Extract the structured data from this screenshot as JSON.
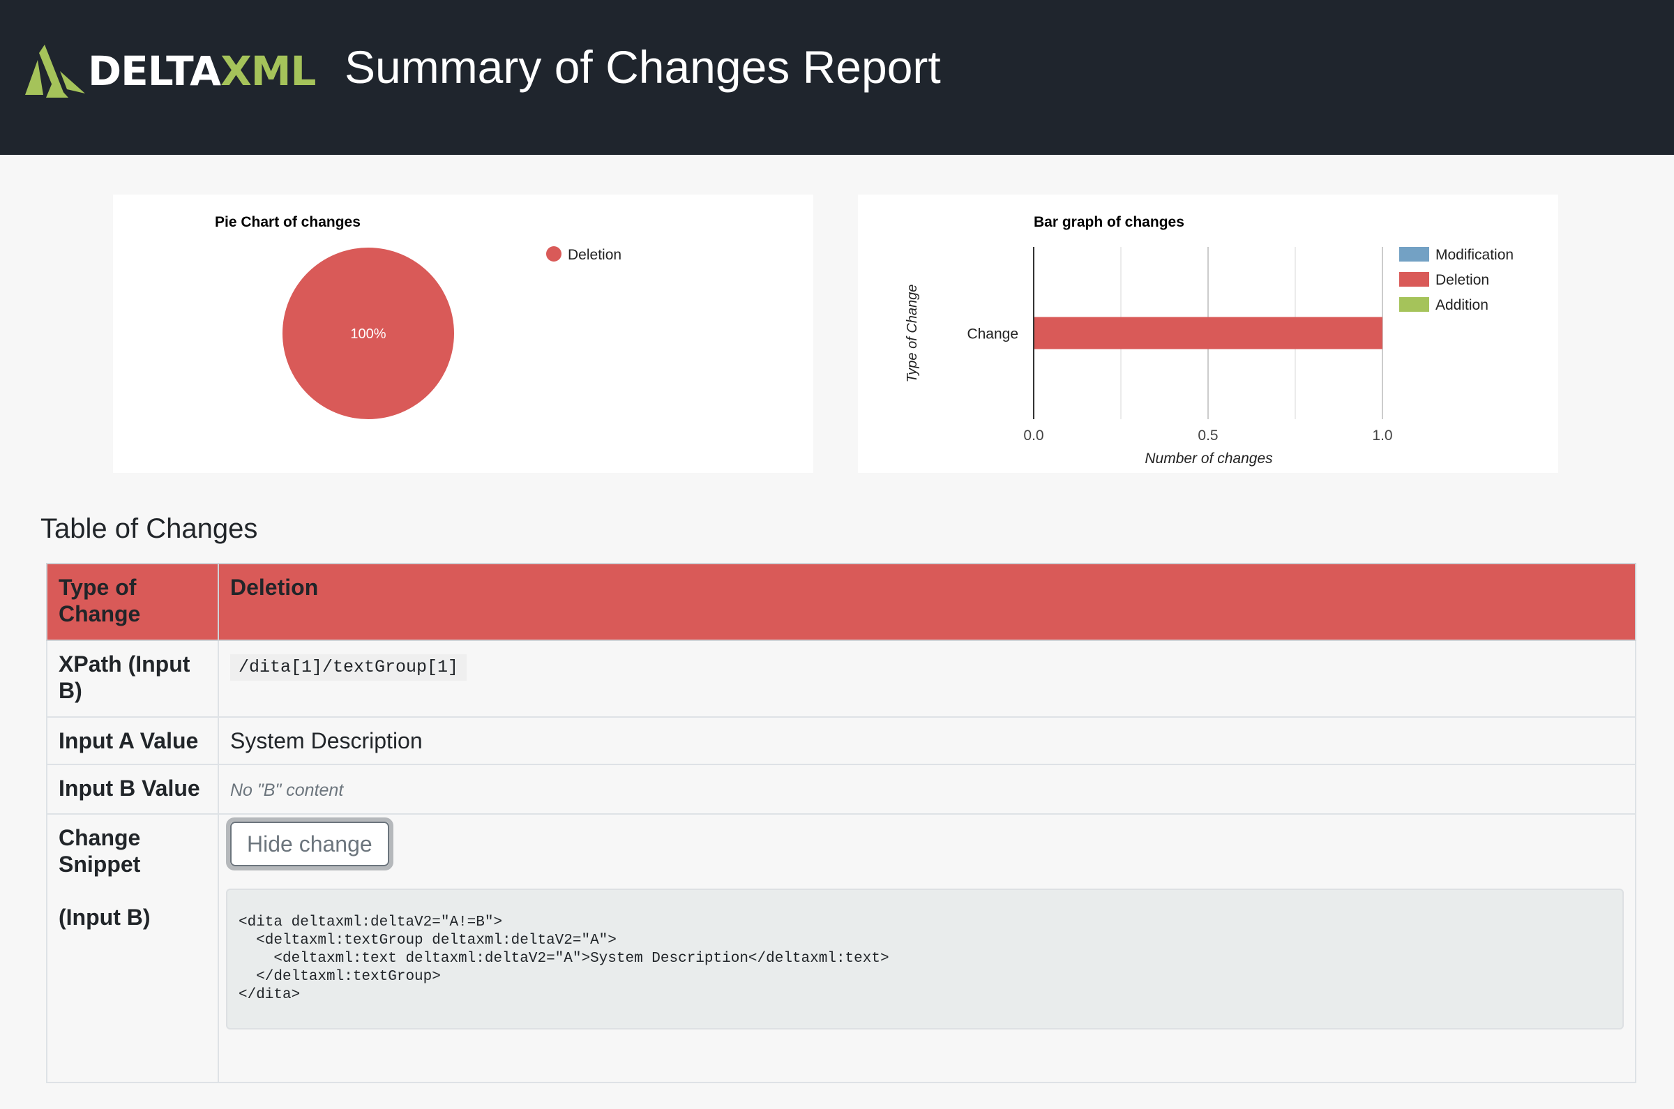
{
  "header": {
    "logo_text_white": "DELTA",
    "logo_text_green": "XML",
    "title": "Summary of Changes Report"
  },
  "colors": {
    "header_bg": "#1f252d",
    "deletion": "#d95a58",
    "modification": "#73a1c4",
    "addition": "#a5c35a"
  },
  "chart_data": [
    {
      "type": "pie",
      "title": "Pie Chart of changes",
      "slices": [
        {
          "label": "Deletion",
          "value": 1,
          "percent_label": "100%",
          "color": "#d95a58"
        }
      ],
      "legend": "right"
    },
    {
      "type": "bar",
      "orientation": "horizontal",
      "title": "Bar graph of changes",
      "categories": [
        "Change"
      ],
      "series": [
        {
          "name": "Modification",
          "values": [
            0
          ],
          "color": "#73a1c4"
        },
        {
          "name": "Deletion",
          "values": [
            1
          ],
          "color": "#d95a58"
        },
        {
          "name": "Addition",
          "values": [
            0
          ],
          "color": "#a5c35a"
        }
      ],
      "xlabel": "Number of changes",
      "ylabel": "Type of Change",
      "xlim": [
        0,
        1
      ],
      "xticks": [
        "0.0",
        "0.5",
        "1.0"
      ],
      "grid": true,
      "legend": "right"
    }
  ],
  "table": {
    "title": "Table of Changes",
    "rows": [
      {
        "label": "Type of Change",
        "value": "Deletion"
      },
      {
        "label": "XPath (Input B)",
        "value": "/dita[1]/textGroup[1]"
      },
      {
        "label": "Input A Value",
        "value": "System Description"
      },
      {
        "label": "Input B Value",
        "value": "No \"B\" content"
      },
      {
        "label": "Change Snippet",
        "label2": "(Input B)",
        "button": "Hide change",
        "code": "<dita deltaxml:deltaV2=\"A!=B\">\n  <deltaxml:textGroup deltaxml:deltaV2=\"A\">\n    <deltaxml:text deltaxml:deltaV2=\"A\">System Description</deltaxml:text>\n  </deltaxml:textGroup>\n</dita>"
      }
    ]
  }
}
